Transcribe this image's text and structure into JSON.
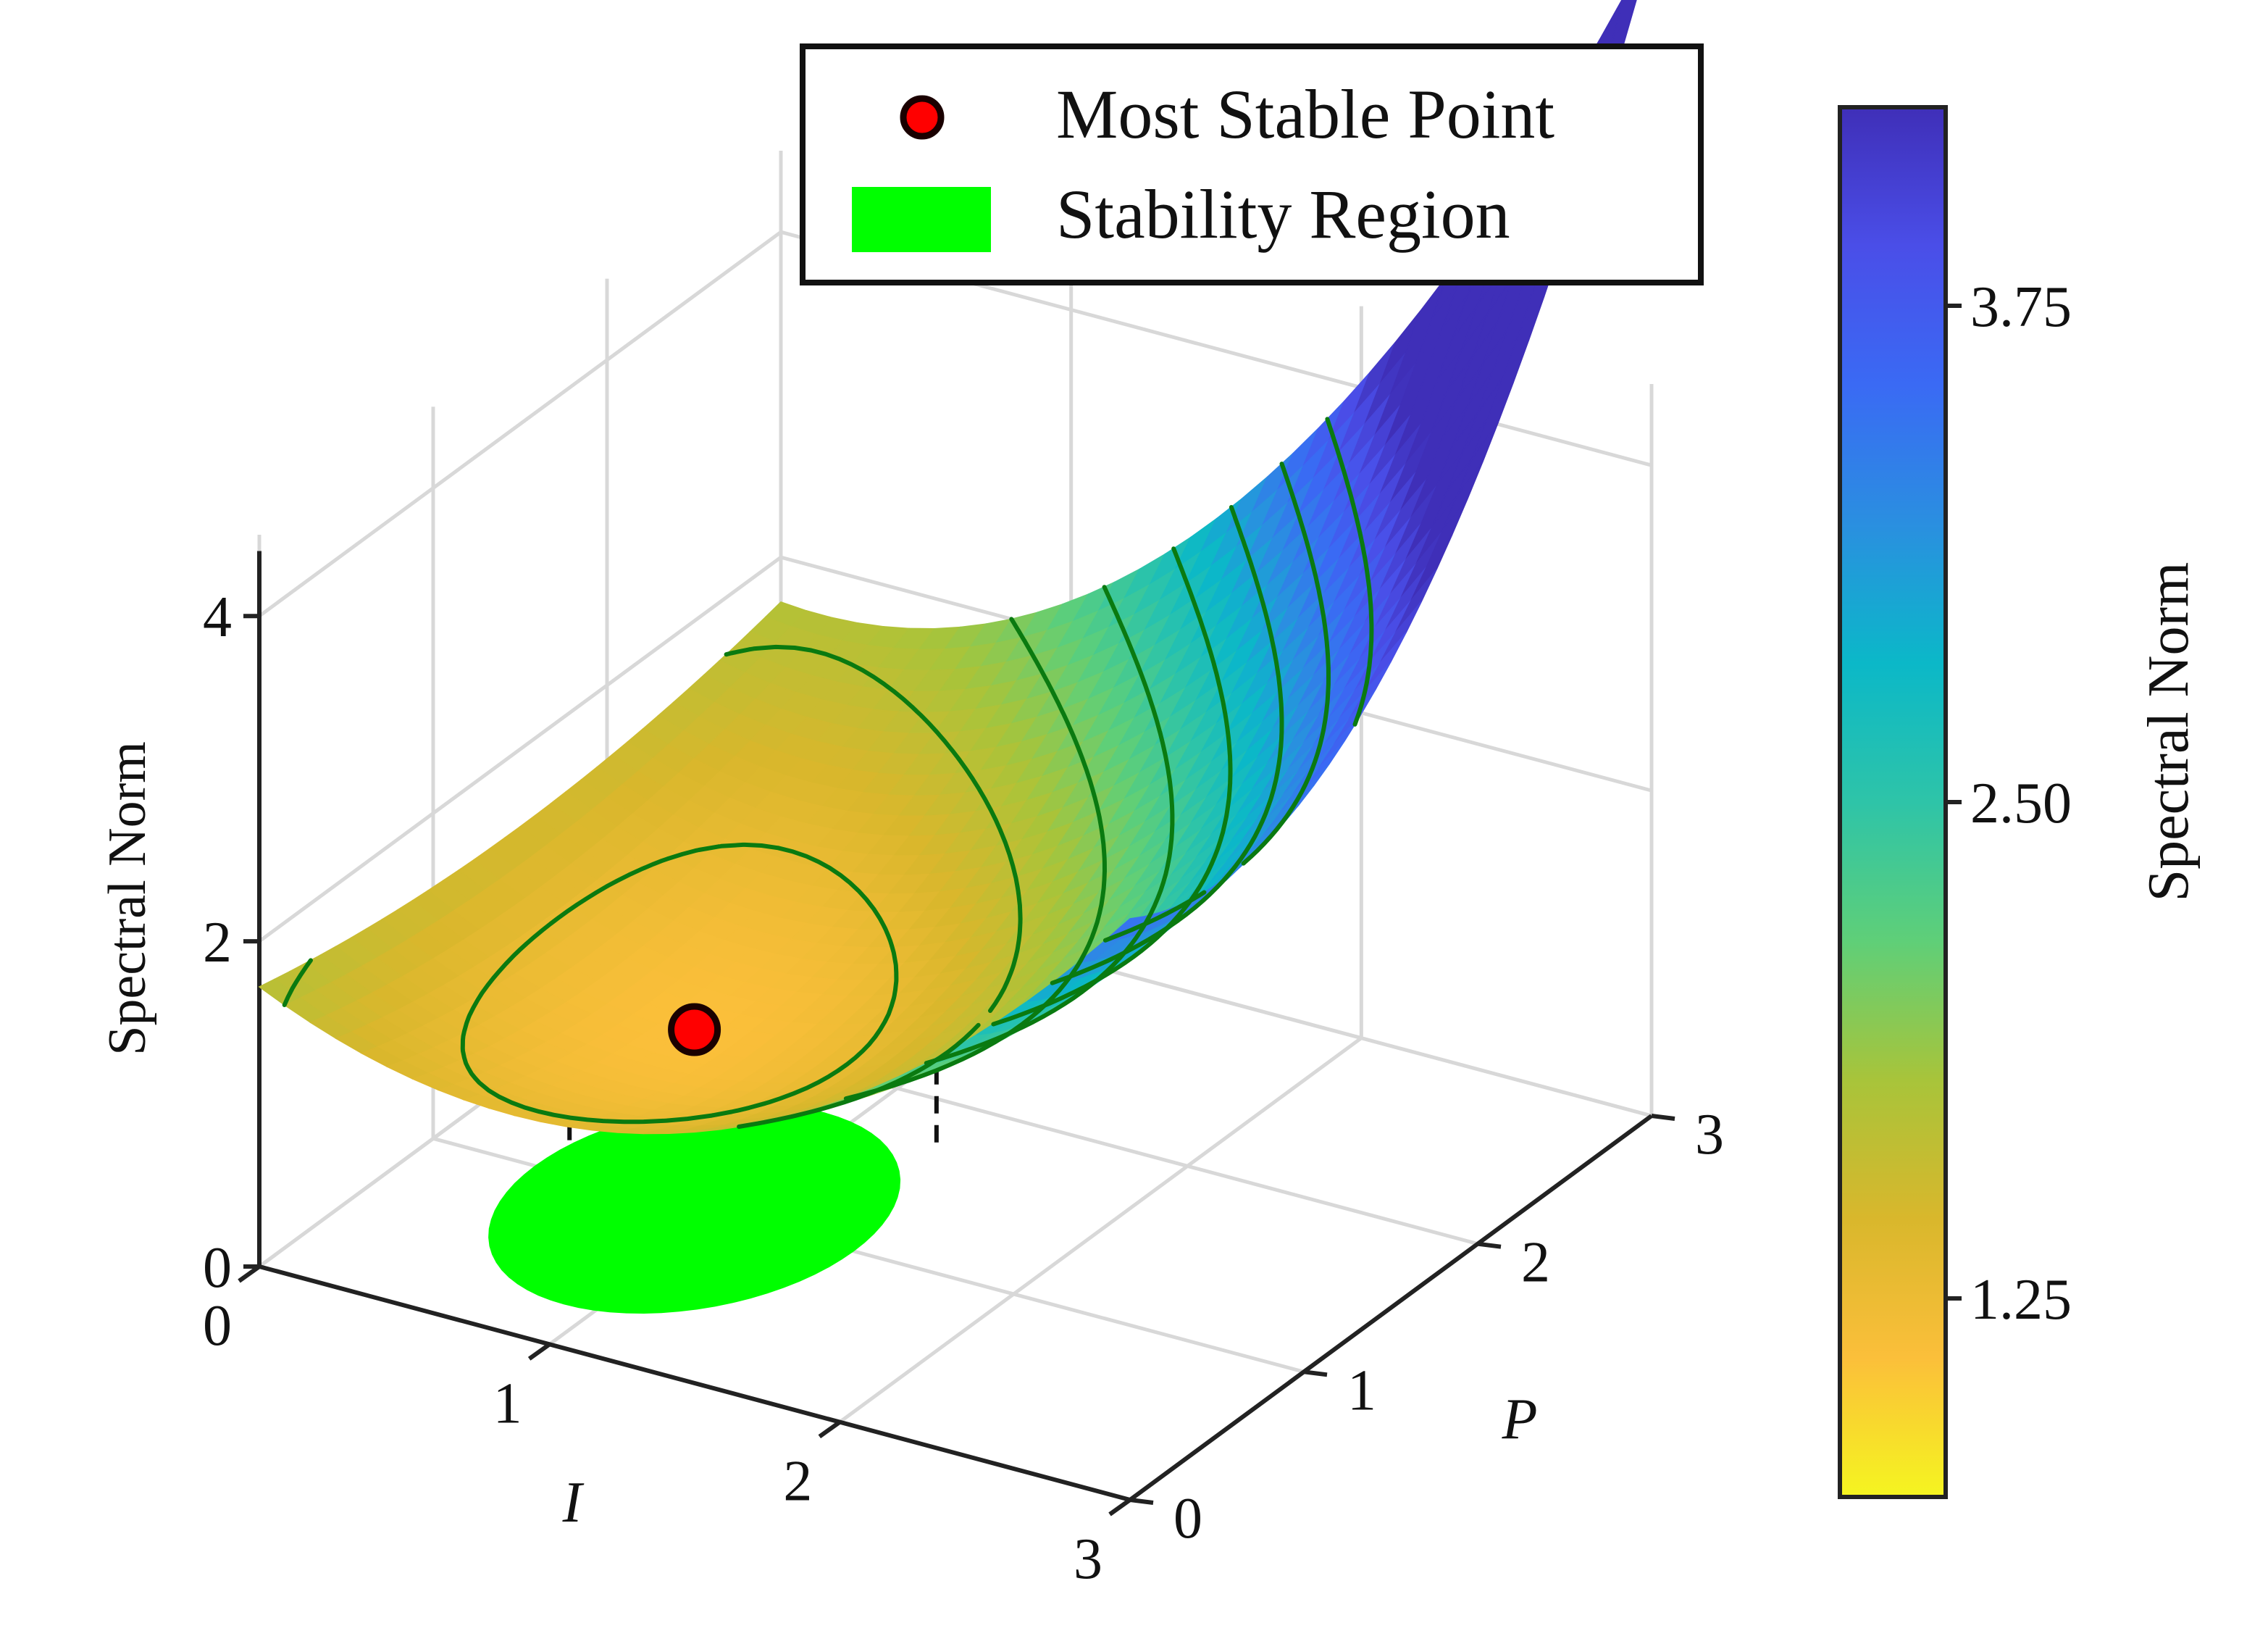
{
  "chart_data": {
    "type": "surface3d",
    "zlabel": "Spectral Norm",
    "xlabel": "I",
    "ylabel": "P",
    "x_ticks": [
      "0",
      "1",
      "2",
      "3"
    ],
    "y_ticks": [
      "0",
      "1",
      "2",
      "3"
    ],
    "z_ticks": [
      "0",
      "2",
      "4"
    ],
    "xlim": [
      0,
      3
    ],
    "ylim": [
      0,
      3
    ],
    "zlim": [
      0,
      4.5
    ],
    "grid": true,
    "legend": {
      "position": "top-center",
      "items": [
        {
          "label": "Most Stable Point",
          "color": "#ff0000"
        },
        {
          "label": "Stability Region",
          "color": "#00ff00"
        }
      ]
    },
    "colorbar": {
      "label": "Spectral Norm",
      "tick_values": [
        1.25,
        2.5,
        3.75
      ],
      "tick_labels": [
        "1.25",
        "2.50",
        "3.75"
      ],
      "range": [
        0.75,
        4.25
      ],
      "colormap": [
        "#f5f520",
        "#fbbf3a",
        "#d9b72c",
        "#a8c43a",
        "#5fcf78",
        "#2ec4a8",
        "#0bb8c8",
        "#2a8fe0",
        "#3a6af4",
        "#4a4ee8",
        "#3f2fb8"
      ]
    },
    "surface": {
      "function": "1.1 + 0.55*(x-0.9)^2 + 0.25*(y-1.0)^2 + 0.15*(x-0.9)*(y-1.0) + 0.18*(y-1.0)^2*(x-0.9)",
      "contour_levels": [
        1.3,
        1.65,
        2.0,
        2.35,
        2.7,
        3.05,
        3.4,
        3.75
      ],
      "contour_color": "#0a7a10"
    },
    "most_stable_point": {
      "x": 0.9,
      "y": 1.0,
      "z": 1.1
    },
    "stability_region": {
      "center_x": 0.9,
      "center_y": 1.0,
      "radius_x": 0.55,
      "radius_y": 0.75,
      "color": "#00ff00"
    }
  }
}
